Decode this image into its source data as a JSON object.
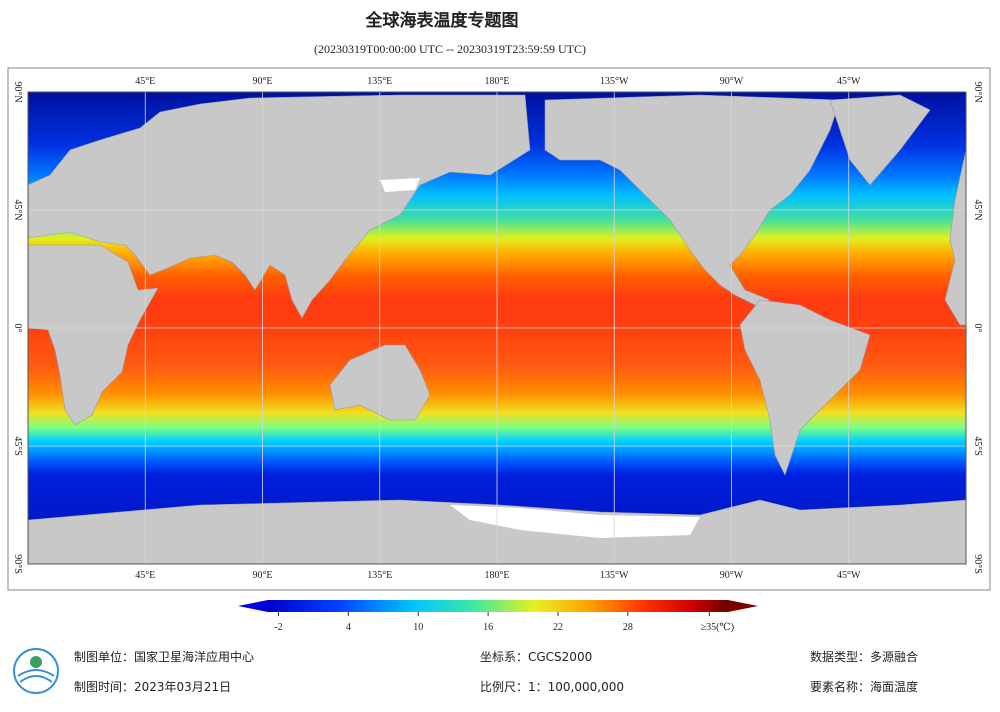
{
  "header": {
    "title": "全球海表温度专题图",
    "subtitle": "(20230319T00:00:00 UTC -- 20230319T23:59:59 UTC)"
  },
  "map": {
    "lon_ticks": [
      {
        "value": 45,
        "label": "45°E"
      },
      {
        "value": 90,
        "label": "90°E"
      },
      {
        "value": 135,
        "label": "135°E"
      },
      {
        "value": 180,
        "label": "180°E"
      },
      {
        "value": -135,
        "label": "135°W"
      },
      {
        "value": -90,
        "label": "90°W"
      },
      {
        "value": -45,
        "label": "45°W"
      }
    ],
    "lat_ticks": [
      {
        "value": 90,
        "label": "90°N"
      },
      {
        "value": 45,
        "label": "45°N"
      },
      {
        "value": 0,
        "label": "0°"
      },
      {
        "value": -45,
        "label": "45°S"
      },
      {
        "value": -90,
        "label": "90°S"
      }
    ]
  },
  "colorbar": {
    "range": [
      -2.9,
      36.6
    ],
    "ticks": [
      -2,
      4,
      10,
      16,
      22,
      28,
      {
        "value": 35,
        "label": "≥35(℃)"
      }
    ]
  },
  "footer": {
    "unit": "制图单位：国家卫星海洋应用中心",
    "date": "制图时间：2023年03月21日",
    "crs": "坐标系：CGCS2000",
    "scale": "比例尺：1：100,000,000",
    "data_type": "数据类型：多源融合",
    "element": "要素名称：海面温度"
  }
}
